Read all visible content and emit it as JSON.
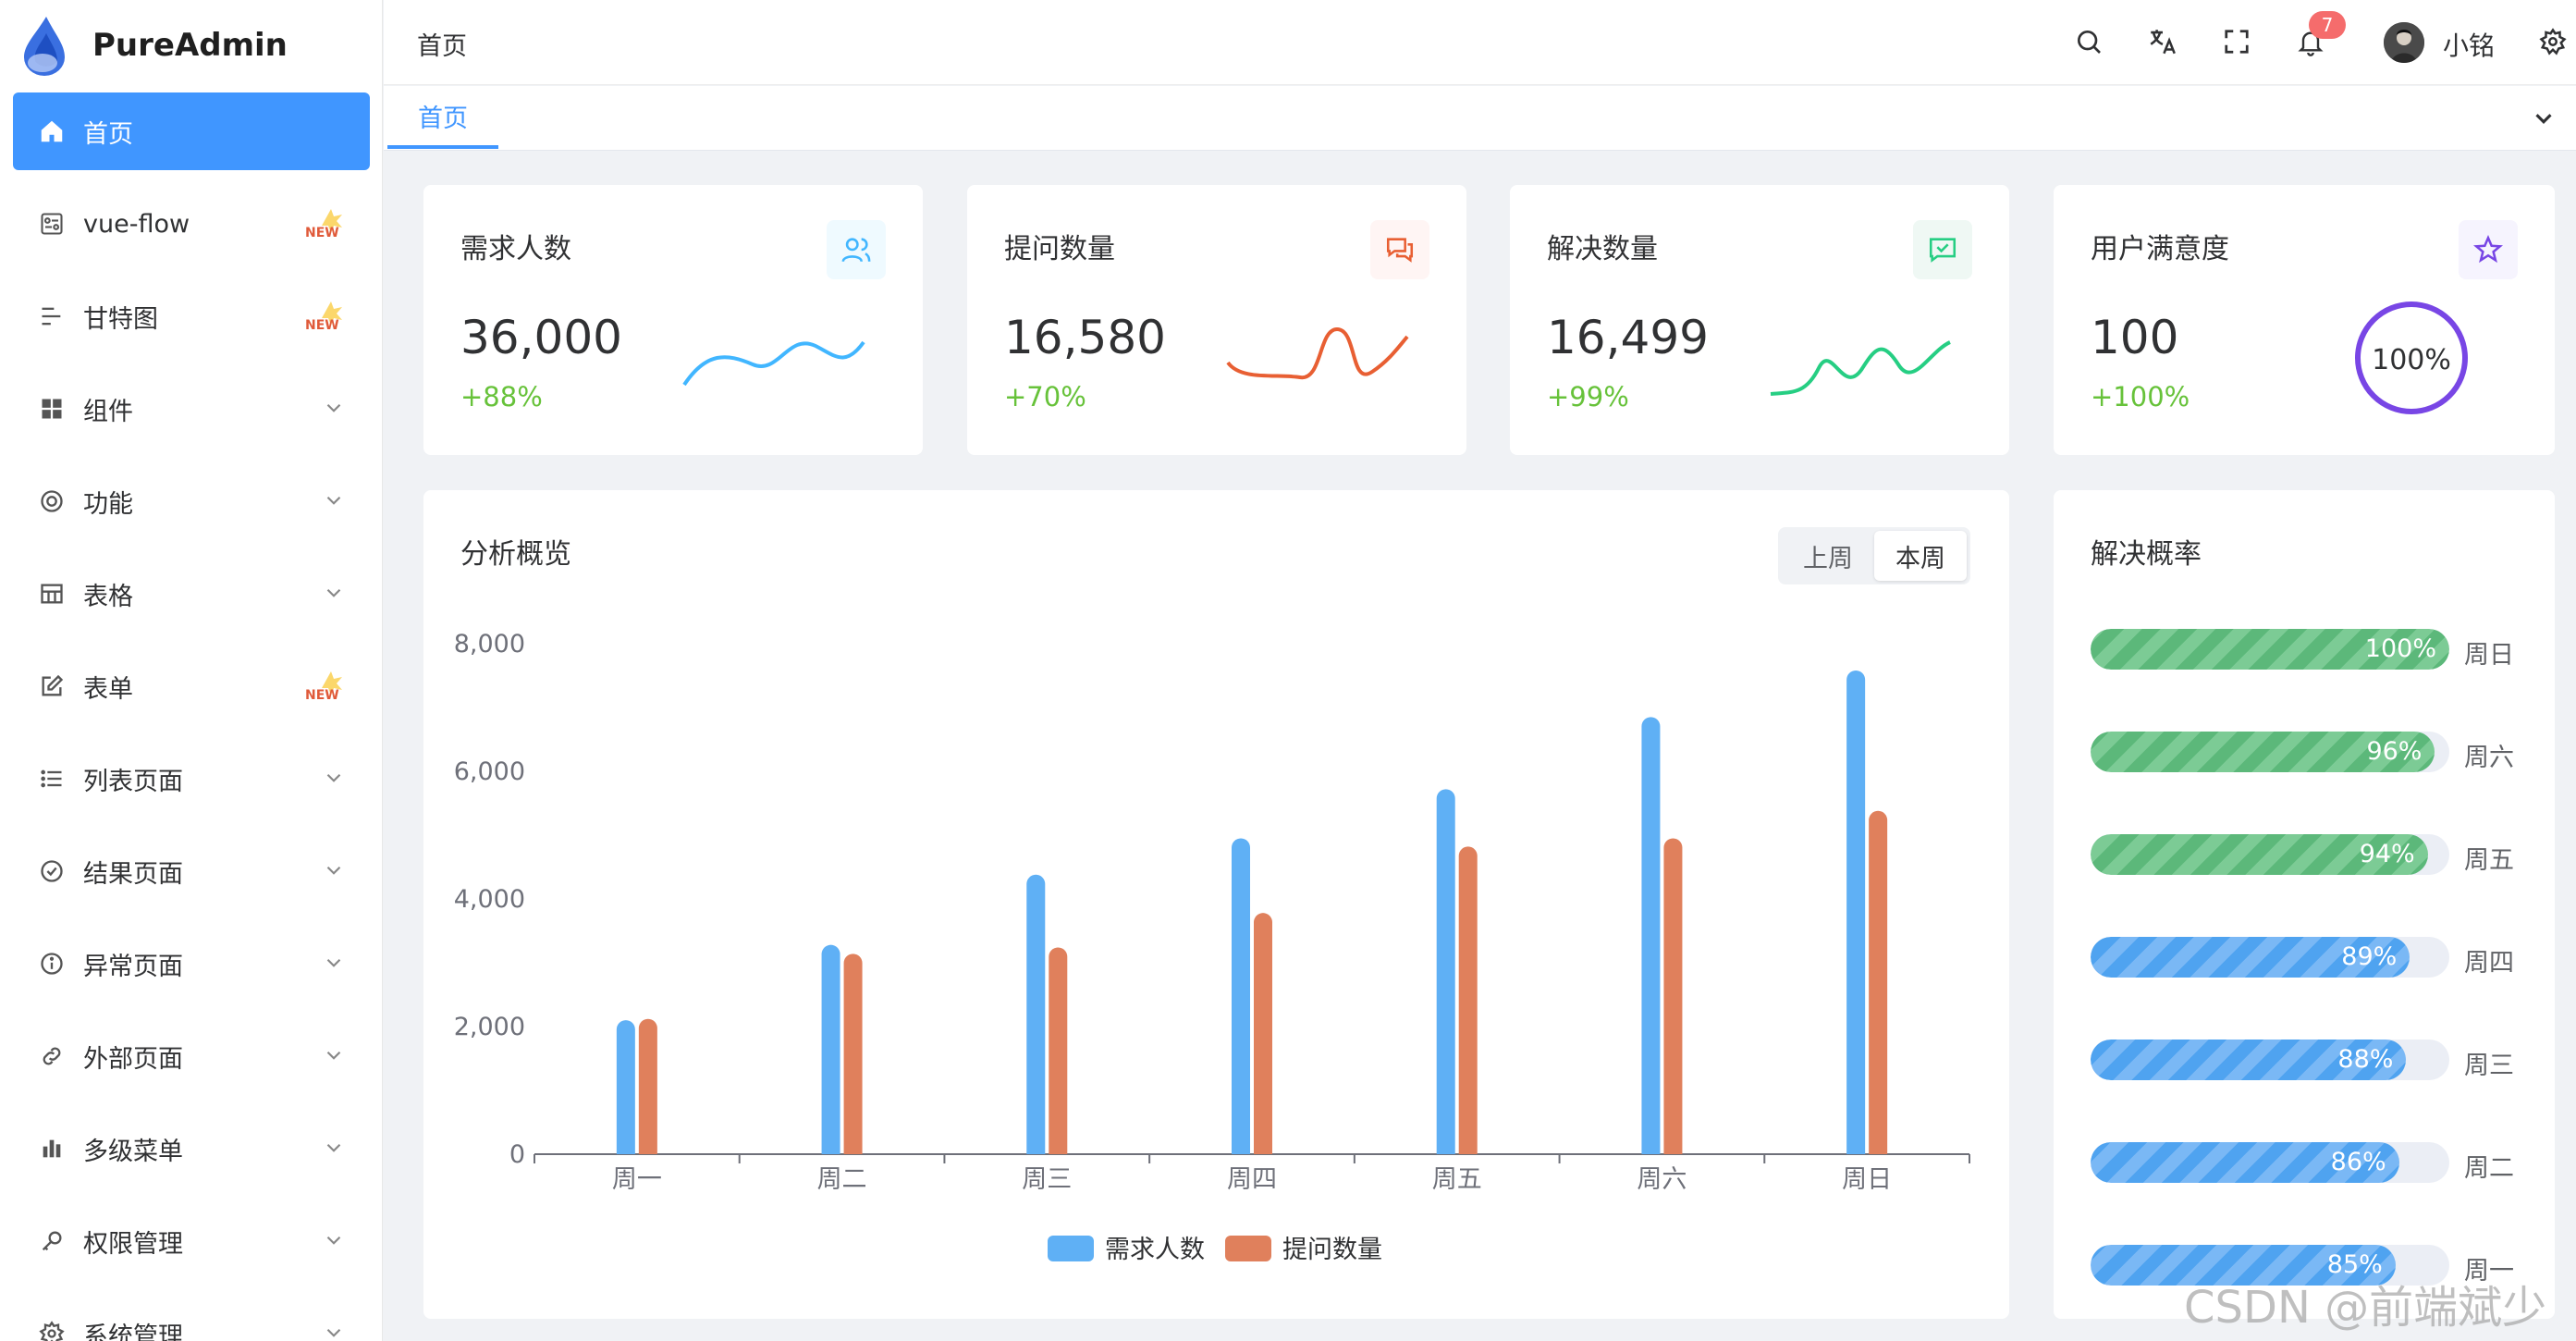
{
  "app": {
    "title": "PureAdmin"
  },
  "sidebar": {
    "items": [
      {
        "label": "首页",
        "icon": "home-icon",
        "active": true
      },
      {
        "label": "vue-flow",
        "icon": "flow-icon",
        "badge": "new-badge-icon"
      },
      {
        "label": "甘特图",
        "icon": "gantt-icon",
        "badge": "new-badge-icon"
      },
      {
        "label": "组件",
        "icon": "grid-icon",
        "expandable": true
      },
      {
        "label": "功能",
        "icon": "function-icon",
        "expandable": true
      },
      {
        "label": "表格",
        "icon": "table-icon",
        "expandable": true
      },
      {
        "label": "表单",
        "icon": "form-icon",
        "badge": "new-badge-icon"
      },
      {
        "label": "列表页面",
        "icon": "list-icon",
        "expandable": true
      },
      {
        "label": "结果页面",
        "icon": "check-circle-icon",
        "expandable": true
      },
      {
        "label": "异常页面",
        "icon": "info-icon",
        "expandable": true
      },
      {
        "label": "外部页面",
        "icon": "link-icon",
        "expandable": true
      },
      {
        "label": "多级菜单",
        "icon": "bar-icon",
        "expandable": true
      },
      {
        "label": "权限管理",
        "icon": "key-icon",
        "expandable": true
      },
      {
        "label": "系统管理",
        "icon": "settings-icon",
        "expandable": true
      }
    ]
  },
  "header": {
    "breadcrumb": "首页",
    "notification_count": "7",
    "username": "小铭"
  },
  "tabs": {
    "items": [
      {
        "label": "首页",
        "active": true
      }
    ]
  },
  "stats": [
    {
      "title": "需求人数",
      "value": "36,000",
      "delta": "+88%",
      "color": "#41b6ff",
      "bg": "#effaff",
      "icon": "users-icon"
    },
    {
      "title": "提问数量",
      "value": "16,580",
      "delta": "+70%",
      "color": "#e85f33",
      "bg": "#fff5f4",
      "icon": "message-icon"
    },
    {
      "title": "解决数量",
      "value": "16,499",
      "delta": "+99%",
      "color": "#26ce83",
      "bg": "#eff8f4",
      "icon": "check-chat-icon"
    },
    {
      "title": "用户满意度",
      "value": "100",
      "delta": "+100%",
      "color": "#7846e5",
      "bg": "#f6f4fe",
      "icon": "star-icon",
      "percent": "100%"
    }
  ],
  "overview": {
    "title": "分析概览",
    "toggle": [
      "上周",
      "本周"
    ],
    "active_toggle": "本周"
  },
  "chart_data": {
    "type": "bar",
    "categories": [
      "周一",
      "周二",
      "周三",
      "周四",
      "周五",
      "周六",
      "周日"
    ],
    "series": [
      {
        "name": "需求人数",
        "color": "#5fb0f5",
        "values": [
          2100,
          3280,
          4380,
          4950,
          5720,
          6850,
          7580
        ]
      },
      {
        "name": "提问数量",
        "color": "#e0805c",
        "values": [
          2120,
          3140,
          3240,
          3780,
          4820,
          4950,
          5380
        ]
      }
    ],
    "y_ticks": [
      "8,000",
      "6,000",
      "4,000",
      "2,000",
      "0"
    ],
    "ylim": [
      0,
      8000
    ],
    "legend_position": "bottom"
  },
  "resolve": {
    "title": "解决概率",
    "rows": [
      {
        "percent": 100,
        "text": "100%",
        "day": "周日",
        "tone": "green"
      },
      {
        "percent": 96,
        "text": "96%",
        "day": "周六",
        "tone": "green"
      },
      {
        "percent": 94,
        "text": "94%",
        "day": "周五",
        "tone": "green"
      },
      {
        "percent": 89,
        "text": "89%",
        "day": "周四",
        "tone": "blue"
      },
      {
        "percent": 88,
        "text": "88%",
        "day": "周三",
        "tone": "blue"
      },
      {
        "percent": 86,
        "text": "86%",
        "day": "周二",
        "tone": "blue"
      },
      {
        "percent": 85,
        "text": "85%",
        "day": "周一",
        "tone": "blue"
      }
    ]
  },
  "watermark": "CSDN @前端斌少"
}
